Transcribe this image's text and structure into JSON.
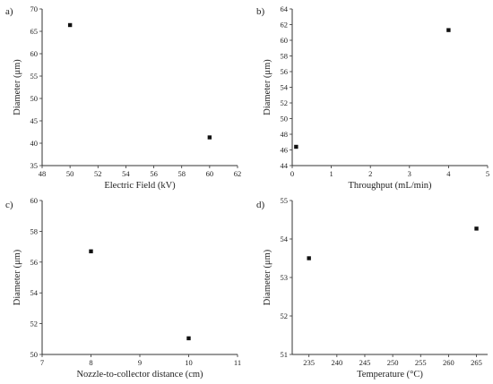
{
  "chart_data": [
    {
      "panel": "a)",
      "type": "scatter",
      "xlabel": "Electric Field (kV)",
      "ylabel": "Diameter (μm)",
      "xlim": [
        48,
        62
      ],
      "ylim": [
        35,
        70
      ],
      "xticks": [
        48,
        50,
        52,
        54,
        56,
        58,
        60,
        62
      ],
      "yticks": [
        35,
        40,
        45,
        50,
        55,
        60,
        65,
        70
      ],
      "points": [
        {
          "x": 50,
          "y": 66.4
        },
        {
          "x": 60,
          "y": 41.3
        }
      ]
    },
    {
      "panel": "b)",
      "type": "scatter",
      "xlabel": "Throughput (mL/min)",
      "ylabel": "Diameter (μm)",
      "xlim": [
        0,
        5
      ],
      "ylim": [
        44,
        64
      ],
      "xticks": [
        0,
        1,
        2,
        3,
        4,
        5
      ],
      "yticks": [
        44,
        46,
        48,
        50,
        52,
        54,
        56,
        58,
        60,
        62,
        64
      ],
      "points": [
        {
          "x": 0.1,
          "y": 46.4
        },
        {
          "x": 4,
          "y": 61.3
        }
      ]
    },
    {
      "panel": "c)",
      "type": "scatter",
      "xlabel": "Nozzle-to-collector distance (cm)",
      "ylabel": "Diameter (μm)",
      "xlim": [
        7,
        11
      ],
      "ylim": [
        50,
        60
      ],
      "xticks": [
        7,
        8,
        9,
        10,
        11
      ],
      "yticks": [
        50,
        52,
        54,
        56,
        58,
        60
      ],
      "points": [
        {
          "x": 8,
          "y": 56.7
        },
        {
          "x": 10,
          "y": 51.05
        }
      ]
    },
    {
      "panel": "d)",
      "type": "scatter",
      "xlabel": "Temperature (°C)",
      "ylabel": "Diameter (μm)",
      "xlim": [
        232,
        267
      ],
      "ylim": [
        51,
        55
      ],
      "xticks": [
        235,
        240,
        245,
        250,
        255,
        260,
        265
      ],
      "yticks": [
        51,
        52,
        53,
        54,
        55
      ],
      "points": [
        {
          "x": 235,
          "y": 53.5
        },
        {
          "x": 265,
          "y": 54.27
        }
      ]
    }
  ]
}
